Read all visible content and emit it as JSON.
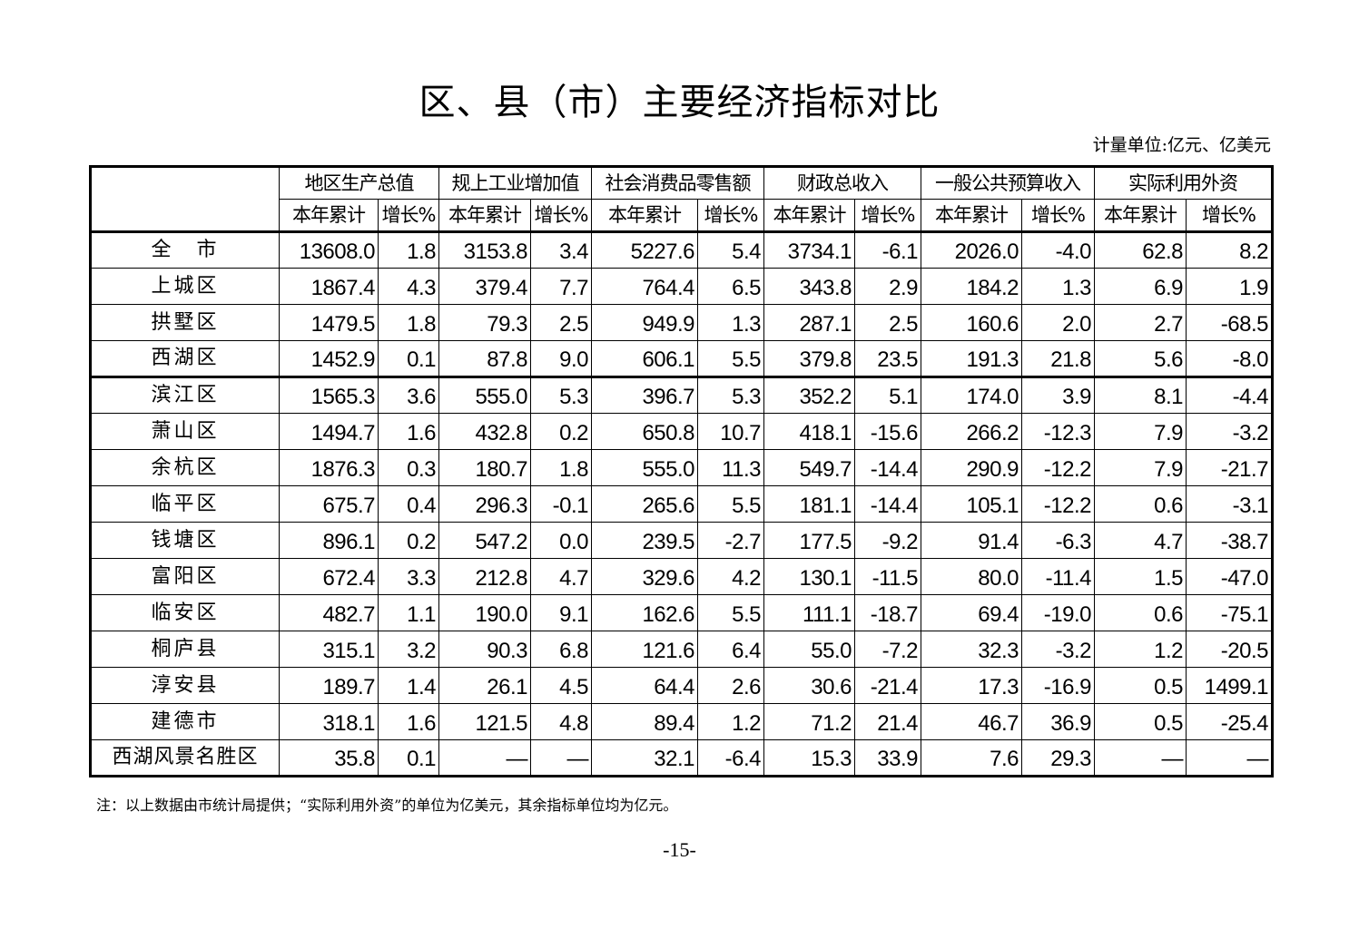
{
  "title": "区、县（市）主要经济指标对比",
  "unit": "计量单位:亿元、亿美元",
  "table": {
    "groups": [
      "地区生产总值",
      "规上工业增加值",
      "社会消费品零售额",
      "财政总收入",
      "一般公共预算收入",
      "实际利用外资"
    ],
    "subheaders": [
      "本年累计",
      "增长%"
    ],
    "rows": [
      {
        "name": "全　市",
        "values": [
          "13608.0",
          "1.8",
          "3153.8",
          "3.4",
          "5227.6",
          "5.4",
          "3734.1",
          "-6.1",
          "2026.0",
          "-4.0",
          "62.8",
          "8.2"
        ]
      },
      {
        "name": "上城区",
        "values": [
          "1867.4",
          "4.3",
          "379.4",
          "7.7",
          "764.4",
          "6.5",
          "343.8",
          "2.9",
          "184.2",
          "1.3",
          "6.9",
          "1.9"
        ]
      },
      {
        "name": "拱墅区",
        "values": [
          "1479.5",
          "1.8",
          "79.3",
          "2.5",
          "949.9",
          "1.3",
          "287.1",
          "2.5",
          "160.6",
          "2.0",
          "2.7",
          "-68.5"
        ]
      },
      {
        "name": "西湖区",
        "values": [
          "1452.9",
          "0.1",
          "87.8",
          "9.0",
          "606.1",
          "5.5",
          "379.8",
          "23.5",
          "191.3",
          "21.8",
          "5.6",
          "-8.0"
        ]
      },
      {
        "name": "滨江区",
        "values": [
          "1565.3",
          "3.6",
          "555.0",
          "5.3",
          "396.7",
          "5.3",
          "352.2",
          "5.1",
          "174.0",
          "3.9",
          "8.1",
          "-4.4"
        ]
      },
      {
        "name": "萧山区",
        "values": [
          "1494.7",
          "1.6",
          "432.8",
          "0.2",
          "650.8",
          "10.7",
          "418.1",
          "-15.6",
          "266.2",
          "-12.3",
          "7.9",
          "-3.2"
        ]
      },
      {
        "name": "余杭区",
        "values": [
          "1876.3",
          "0.3",
          "180.7",
          "1.8",
          "555.0",
          "11.3",
          "549.7",
          "-14.4",
          "290.9",
          "-12.2",
          "7.9",
          "-21.7"
        ]
      },
      {
        "name": "临平区",
        "values": [
          "675.7",
          "0.4",
          "296.3",
          "-0.1",
          "265.6",
          "5.5",
          "181.1",
          "-14.4",
          "105.1",
          "-12.2",
          "0.6",
          "-3.1"
        ]
      },
      {
        "name": "钱塘区",
        "values": [
          "896.1",
          "0.2",
          "547.2",
          "0.0",
          "239.5",
          "-2.7",
          "177.5",
          "-9.2",
          "91.4",
          "-6.3",
          "4.7",
          "-38.7"
        ]
      },
      {
        "name": "富阳区",
        "values": [
          "672.4",
          "3.3",
          "212.8",
          "4.7",
          "329.6",
          "4.2",
          "130.1",
          "-11.5",
          "80.0",
          "-11.4",
          "1.5",
          "-47.0"
        ]
      },
      {
        "name": "临安区",
        "values": [
          "482.7",
          "1.1",
          "190.0",
          "9.1",
          "162.6",
          "5.5",
          "111.1",
          "-18.7",
          "69.4",
          "-19.0",
          "0.6",
          "-75.1"
        ]
      },
      {
        "name": "桐庐县",
        "values": [
          "315.1",
          "3.2",
          "90.3",
          "6.8",
          "121.6",
          "6.4",
          "55.0",
          "-7.2",
          "32.3",
          "-3.2",
          "1.2",
          "-20.5"
        ]
      },
      {
        "name": "淳安县",
        "values": [
          "189.7",
          "1.4",
          "26.1",
          "4.5",
          "64.4",
          "2.6",
          "30.6",
          "-21.4",
          "17.3",
          "-16.9",
          "0.5",
          "1499.1"
        ]
      },
      {
        "name": "建德市",
        "values": [
          "318.1",
          "1.6",
          "121.5",
          "4.8",
          "89.4",
          "1.2",
          "71.2",
          "21.4",
          "46.7",
          "36.9",
          "0.5",
          "-25.4"
        ]
      },
      {
        "name": "西湖风景名胜区",
        "values": [
          "35.8",
          "0.1",
          "—",
          "—",
          "32.1",
          "-6.4",
          "15.3",
          "33.9",
          "7.6",
          "29.3",
          "—",
          "—"
        ]
      }
    ]
  },
  "note": "注：以上数据由市统计局提供；“实际利用外资”的单位为亿美元，其余指标单位均为亿元。",
  "page_number": "-15-"
}
